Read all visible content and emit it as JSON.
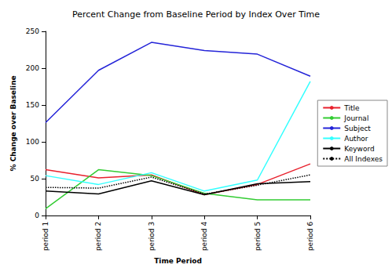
{
  "chart_data": {
    "type": "line",
    "title": "Percent Change from Baseline Period by Index Over Time",
    "x_label": "Time Period",
    "y_label": "% Change over Baseline",
    "categories": [
      "period 1",
      "period 2",
      "period 3",
      "period 4",
      "period 5",
      "period 6"
    ],
    "series": [
      {
        "name": "Title",
        "color": "#e8212d",
        "line_style": "solid",
        "values": [
          62,
          51,
          55,
          28,
          42,
          70
        ]
      },
      {
        "name": "Journal",
        "color": "#33cc33",
        "line_style": "solid",
        "values": [
          9,
          62,
          54,
          30,
          21,
          21
        ]
      },
      {
        "name": "Subject",
        "color": "#2424d8",
        "line_style": "solid",
        "values": [
          126,
          197,
          235,
          224,
          219,
          189
        ]
      },
      {
        "name": "Author",
        "color": "#33ffff",
        "line_style": "solid",
        "values": [
          54,
          42,
          58,
          33,
          48,
          182
        ]
      },
      {
        "name": "Keyword",
        "color": "#000000",
        "line_style": "solid",
        "values": [
          33,
          29,
          47,
          28,
          43,
          46
        ]
      },
      {
        "name": "All Indexes",
        "color": "#000000",
        "line_style": "dotted",
        "values": [
          38,
          37,
          52,
          29,
          41,
          55
        ]
      }
    ],
    "ylim": [
      0,
      250
    ],
    "yticks": [
      0,
      50,
      100,
      150,
      200,
      250
    ],
    "grid": false,
    "legend": "right"
  }
}
